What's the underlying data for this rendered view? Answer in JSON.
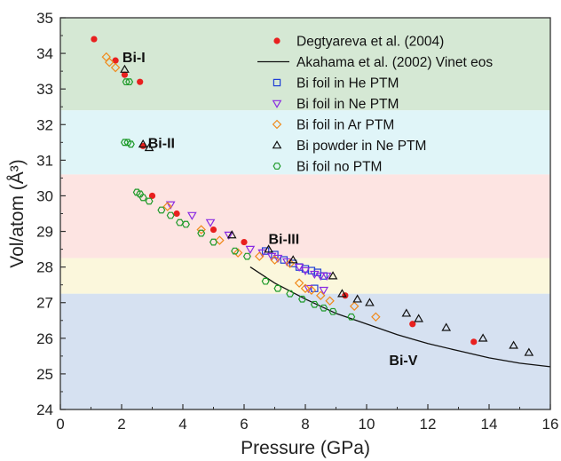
{
  "chart_data": {
    "type": "scatter",
    "title": "",
    "xlabel": "Pressure (GPa)",
    "ylabel": "Vol/atom (Å³)",
    "xlim": [
      0,
      16
    ],
    "ylim": [
      24,
      35
    ],
    "xticks": [
      "0",
      "2",
      "4",
      "6",
      "8",
      "10",
      "12",
      "14",
      "16"
    ],
    "yticks": [
      "24",
      "25",
      "26",
      "27",
      "28",
      "29",
      "30",
      "31",
      "32",
      "33",
      "34",
      "35"
    ],
    "legend_position": "top-right",
    "phase_bands": [
      {
        "label": "Bi-I",
        "y_range": [
          32.4,
          35
        ],
        "color": "#d5e8d4",
        "label_x": 2.4,
        "label_y": 33.9
      },
      {
        "label": "Bi-II",
        "y_range": [
          30.6,
          32.4
        ],
        "color": "#e0f5f8",
        "label_x": 3.3,
        "label_y": 31.5
      },
      {
        "label": "Bi-III",
        "y_range": [
          28.25,
          30.6
        ],
        "color": "#fde4e2",
        "label_x": 7.3,
        "label_y": 28.8
      },
      {
        "label": "",
        "y_range": [
          27.25,
          28.25
        ],
        "color": "#fbf7dc",
        "label_x": 0,
        "label_y": 0
      },
      {
        "label": "Bi-V",
        "y_range": [
          24,
          27.25
        ],
        "color": "#d6e1f1",
        "label_x": 11.2,
        "label_y": 25.4
      }
    ],
    "series": [
      {
        "name": "Degtyareva et al. (2004)",
        "marker": "filled-circle",
        "color": "#e8201f",
        "points": [
          [
            1.1,
            34.4
          ],
          [
            1.8,
            33.8
          ],
          [
            2.1,
            33.4
          ],
          [
            2.6,
            33.2
          ],
          [
            2.7,
            31.4
          ],
          [
            3.0,
            30.0
          ],
          [
            3.8,
            29.5
          ],
          [
            5.0,
            29.05
          ],
          [
            6.0,
            28.7
          ],
          [
            9.3,
            27.2
          ],
          [
            11.5,
            26.4
          ],
          [
            13.5,
            25.9
          ]
        ]
      },
      {
        "name": "Akahama et al. (2002) Vinet eos",
        "marker": "line",
        "color": "#111111",
        "points": [
          [
            6.2,
            28.0
          ],
          [
            7.0,
            27.55
          ],
          [
            8.0,
            27.1
          ],
          [
            9.0,
            26.7
          ],
          [
            10.0,
            26.4
          ],
          [
            11.0,
            26.1
          ],
          [
            12.0,
            25.85
          ],
          [
            13.0,
            25.65
          ],
          [
            14.0,
            25.45
          ],
          [
            15.0,
            25.3
          ],
          [
            16.0,
            25.2
          ]
        ]
      },
      {
        "name": "Bi foil in He PTM",
        "marker": "open-square",
        "color": "#1f3fd6",
        "points": [
          [
            6.7,
            28.45
          ],
          [
            7.0,
            28.35
          ],
          [
            7.3,
            28.2
          ],
          [
            7.6,
            28.1
          ],
          [
            7.8,
            28.0
          ],
          [
            8.0,
            27.95
          ],
          [
            8.2,
            27.9
          ],
          [
            8.4,
            27.85
          ],
          [
            8.6,
            27.75
          ],
          [
            8.3,
            27.4
          ]
        ]
      },
      {
        "name": "Bi foil in Ne PTM",
        "marker": "open-triangle-down",
        "color": "#8a2be2",
        "points": [
          [
            3.6,
            29.75
          ],
          [
            4.3,
            29.45
          ],
          [
            4.9,
            29.25
          ],
          [
            5.5,
            28.9
          ],
          [
            6.2,
            28.5
          ],
          [
            6.6,
            28.4
          ],
          [
            6.9,
            28.3
          ],
          [
            7.1,
            28.25
          ],
          [
            7.4,
            28.15
          ],
          [
            7.8,
            28.0
          ],
          [
            8.0,
            27.9
          ],
          [
            8.3,
            27.8
          ],
          [
            8.5,
            27.75
          ],
          [
            8.7,
            27.75
          ],
          [
            8.1,
            27.4
          ],
          [
            8.6,
            27.35
          ]
        ]
      },
      {
        "name": "Bi foil in Ar PTM",
        "marker": "open-diamond",
        "color": "#f08a1c",
        "points": [
          [
            1.5,
            33.9
          ],
          [
            1.6,
            33.75
          ],
          [
            1.8,
            33.6
          ],
          [
            3.5,
            29.7
          ],
          [
            4.6,
            29.05
          ],
          [
            5.2,
            28.75
          ],
          [
            5.8,
            28.4
          ],
          [
            6.5,
            28.3
          ],
          [
            7.0,
            28.2
          ],
          [
            7.5,
            28.1
          ],
          [
            7.8,
            27.55
          ],
          [
            8.0,
            27.4
          ],
          [
            8.2,
            27.35
          ],
          [
            8.5,
            27.2
          ],
          [
            8.8,
            27.05
          ],
          [
            9.6,
            26.9
          ],
          [
            10.3,
            26.6
          ]
        ]
      },
      {
        "name": "Bi powder in Ne PTM",
        "marker": "open-triangle-up",
        "color": "#111111",
        "points": [
          [
            2.1,
            33.55
          ],
          [
            2.7,
            31.45
          ],
          [
            2.9,
            31.35
          ],
          [
            5.6,
            28.9
          ],
          [
            6.8,
            28.5
          ],
          [
            7.6,
            28.2
          ],
          [
            8.9,
            27.75
          ],
          [
            9.2,
            27.25
          ],
          [
            9.7,
            27.1
          ],
          [
            10.1,
            27.0
          ],
          [
            11.3,
            26.7
          ],
          [
            11.7,
            26.55
          ],
          [
            12.6,
            26.3
          ],
          [
            13.8,
            26.0
          ],
          [
            14.8,
            25.8
          ],
          [
            15.3,
            25.6
          ]
        ]
      },
      {
        "name": "Bi foil no PTM",
        "marker": "open-hexagon",
        "color": "#1e9a2a",
        "points": [
          [
            2.15,
            33.2
          ],
          [
            2.25,
            33.2
          ],
          [
            2.1,
            31.5
          ],
          [
            2.2,
            31.5
          ],
          [
            2.3,
            31.45
          ],
          [
            2.5,
            30.1
          ],
          [
            2.6,
            30.05
          ],
          [
            2.7,
            29.95
          ],
          [
            2.9,
            29.85
          ],
          [
            3.3,
            29.6
          ],
          [
            3.6,
            29.45
          ],
          [
            3.9,
            29.25
          ],
          [
            4.1,
            29.2
          ],
          [
            4.6,
            28.95
          ],
          [
            5.0,
            28.7
          ],
          [
            5.7,
            28.45
          ],
          [
            6.1,
            28.3
          ],
          [
            6.7,
            27.6
          ],
          [
            7.1,
            27.4
          ],
          [
            7.5,
            27.25
          ],
          [
            7.9,
            27.1
          ],
          [
            8.3,
            26.95
          ],
          [
            8.6,
            26.85
          ],
          [
            8.9,
            26.75
          ],
          [
            9.5,
            26.6
          ]
        ]
      }
    ]
  }
}
